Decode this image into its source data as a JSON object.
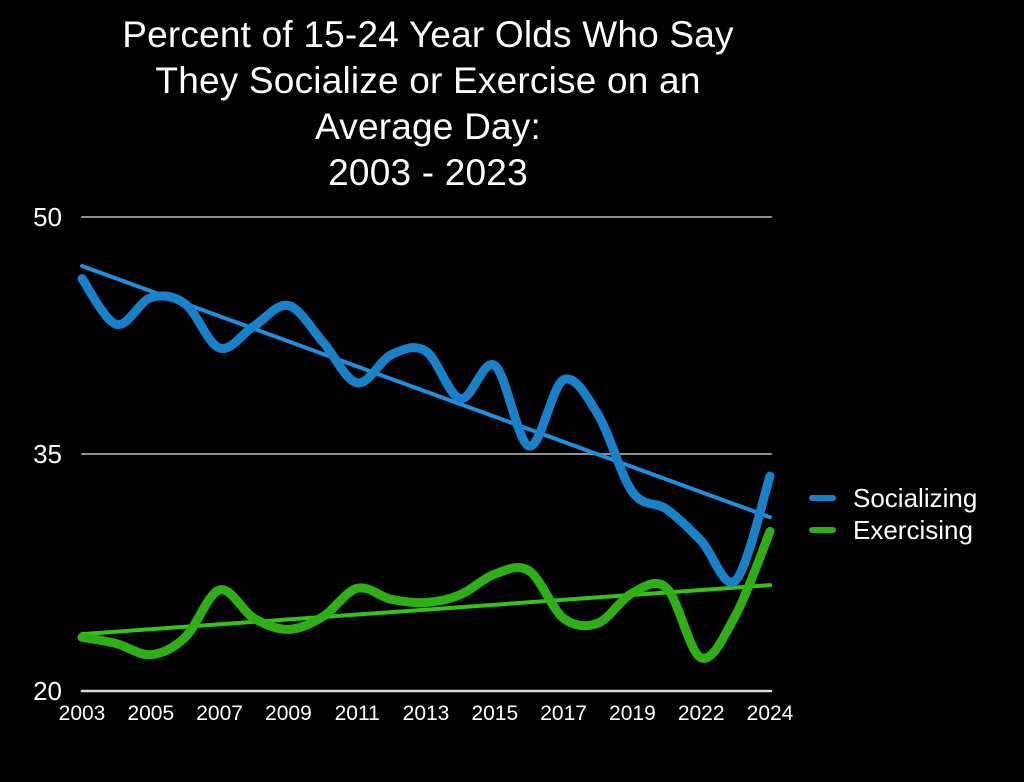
{
  "page": {
    "background_color": "#000000",
    "text_color": "#ffffff",
    "gridline_color": "#8f8f8f",
    "axis_line_color": "#dcdcdc"
  },
  "chart_data": {
    "type": "line",
    "title": "Percent of 15-24 Year Olds Who Say They Socialize or Exercise on an Average Day: 2003 - 2023",
    "title_lines": [
      "Percent of 15-24 Year Olds Who Say",
      "They Socialize or Exercise on an",
      "Average Day:",
      "2003 - 2023"
    ],
    "ylim": [
      20,
      50
    ],
    "grid": true,
    "legend_position": "right",
    "y_axis": {
      "ticks": [
        {
          "label": "50",
          "value": 50
        },
        {
          "label": "35",
          "value": 35
        },
        {
          "label": "20",
          "value": 20
        }
      ]
    },
    "x_axis": {
      "slot_count": 21,
      "ticks": [
        {
          "label": "2003",
          "slot": 0
        },
        {
          "label": "2005",
          "slot": 2
        },
        {
          "label": "2007",
          "slot": 4
        },
        {
          "label": "2009",
          "slot": 6
        },
        {
          "label": "2011",
          "slot": 8
        },
        {
          "label": "2013",
          "slot": 10
        },
        {
          "label": "2015",
          "slot": 12
        },
        {
          "label": "2017",
          "slot": 14
        },
        {
          "label": "2019",
          "slot": 16
        },
        {
          "label": "2022",
          "slot": 18
        },
        {
          "label": "2024",
          "slot": 20
        }
      ]
    },
    "series": [
      {
        "name": "Socializing",
        "color": "#1781c9",
        "trend_color": "#1e8fdd",
        "values": [
          46.1,
          43.2,
          44.9,
          44.5,
          41.7,
          43.1,
          44.4,
          42.1,
          39.5,
          41.3,
          41.5,
          38.5,
          40.6,
          35.5,
          39.7,
          37.5,
          32.6,
          31.5,
          29.5,
          27.0,
          33.6
        ],
        "trendline": {
          "start": 46.9,
          "end": 31.0
        }
      },
      {
        "name": "Exercising",
        "color": "#2daf15",
        "trend_color": "#35c315",
        "values": [
          23.4,
          23.0,
          22.3,
          23.4,
          26.4,
          24.6,
          23.9,
          24.7,
          26.5,
          25.8,
          25.6,
          26.1,
          27.4,
          27.6,
          24.6,
          24.3,
          26.2,
          26.5,
          22.1,
          24.8,
          30.1
        ],
        "trendline": {
          "start": 23.6,
          "end": 26.7
        }
      }
    ]
  }
}
